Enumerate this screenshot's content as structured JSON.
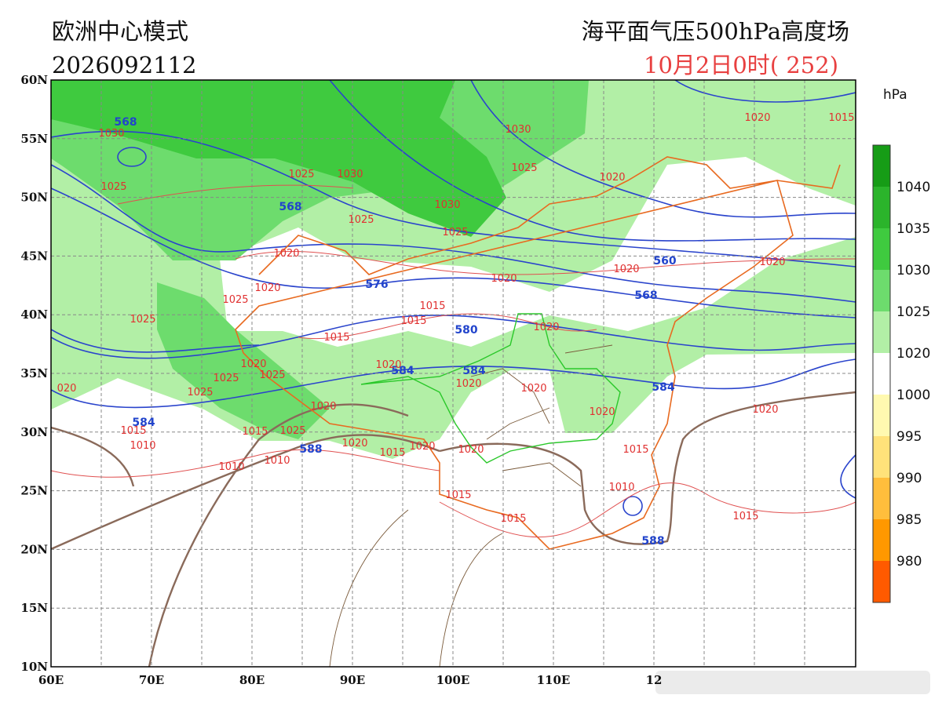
{
  "header": {
    "model": "欧洲中心模式",
    "run": "2026092112",
    "title": "海平面气压500hPa高度场",
    "valid": "10月2日0时",
    "lead": "( 252)"
  },
  "axes": {
    "lat_labels": [
      "60N",
      "55N",
      "50N",
      "45N",
      "40N",
      "35N",
      "30N",
      "25N",
      "20N",
      "15N",
      "10N"
    ],
    "lon_labels": [
      "60E",
      "70E",
      "80E",
      "90E",
      "100E",
      "110E",
      "12"
    ]
  },
  "colorbar": {
    "unit": "hPa",
    "levels": [
      "1040",
      "1035",
      "1030",
      "1025",
      "1020",
      "1000",
      "995",
      "990",
      "985",
      "980"
    ],
    "colors": [
      "#169c16",
      "#2bb42b",
      "#3fca3f",
      "#6ddc6d",
      "#b2efa6",
      "#ffffff",
      "#fff9b0",
      "#ffe27a",
      "#ffbe3c",
      "#ff9800",
      "#ff5a00"
    ]
  },
  "height_labels": [
    "568",
    "568",
    "576",
    "580",
    "584",
    "584",
    "584",
    "560",
    "568",
    "584",
    "588",
    "588"
  ],
  "pressure_labels": [
    "1030",
    "1025",
    "1030",
    "1025",
    "1020",
    "1020",
    "1015",
    "1025",
    "1030",
    "1030",
    "1025",
    "1025",
    "1020",
    "1020",
    "1020",
    "1020",
    "1020",
    "1025",
    "1025",
    "1015",
    "1015",
    "1015",
    "1020",
    "1020",
    "1025",
    "1025",
    "1020",
    "1020",
    "1020",
    "1025",
    "1020",
    "1020",
    "1020",
    "1015",
    "1025",
    "1020",
    "1015",
    "1020",
    "1020",
    "1010",
    "1015",
    "1010",
    "1010",
    "1015",
    "1010",
    "1015",
    "1015",
    "1015",
    "020"
  ]
}
